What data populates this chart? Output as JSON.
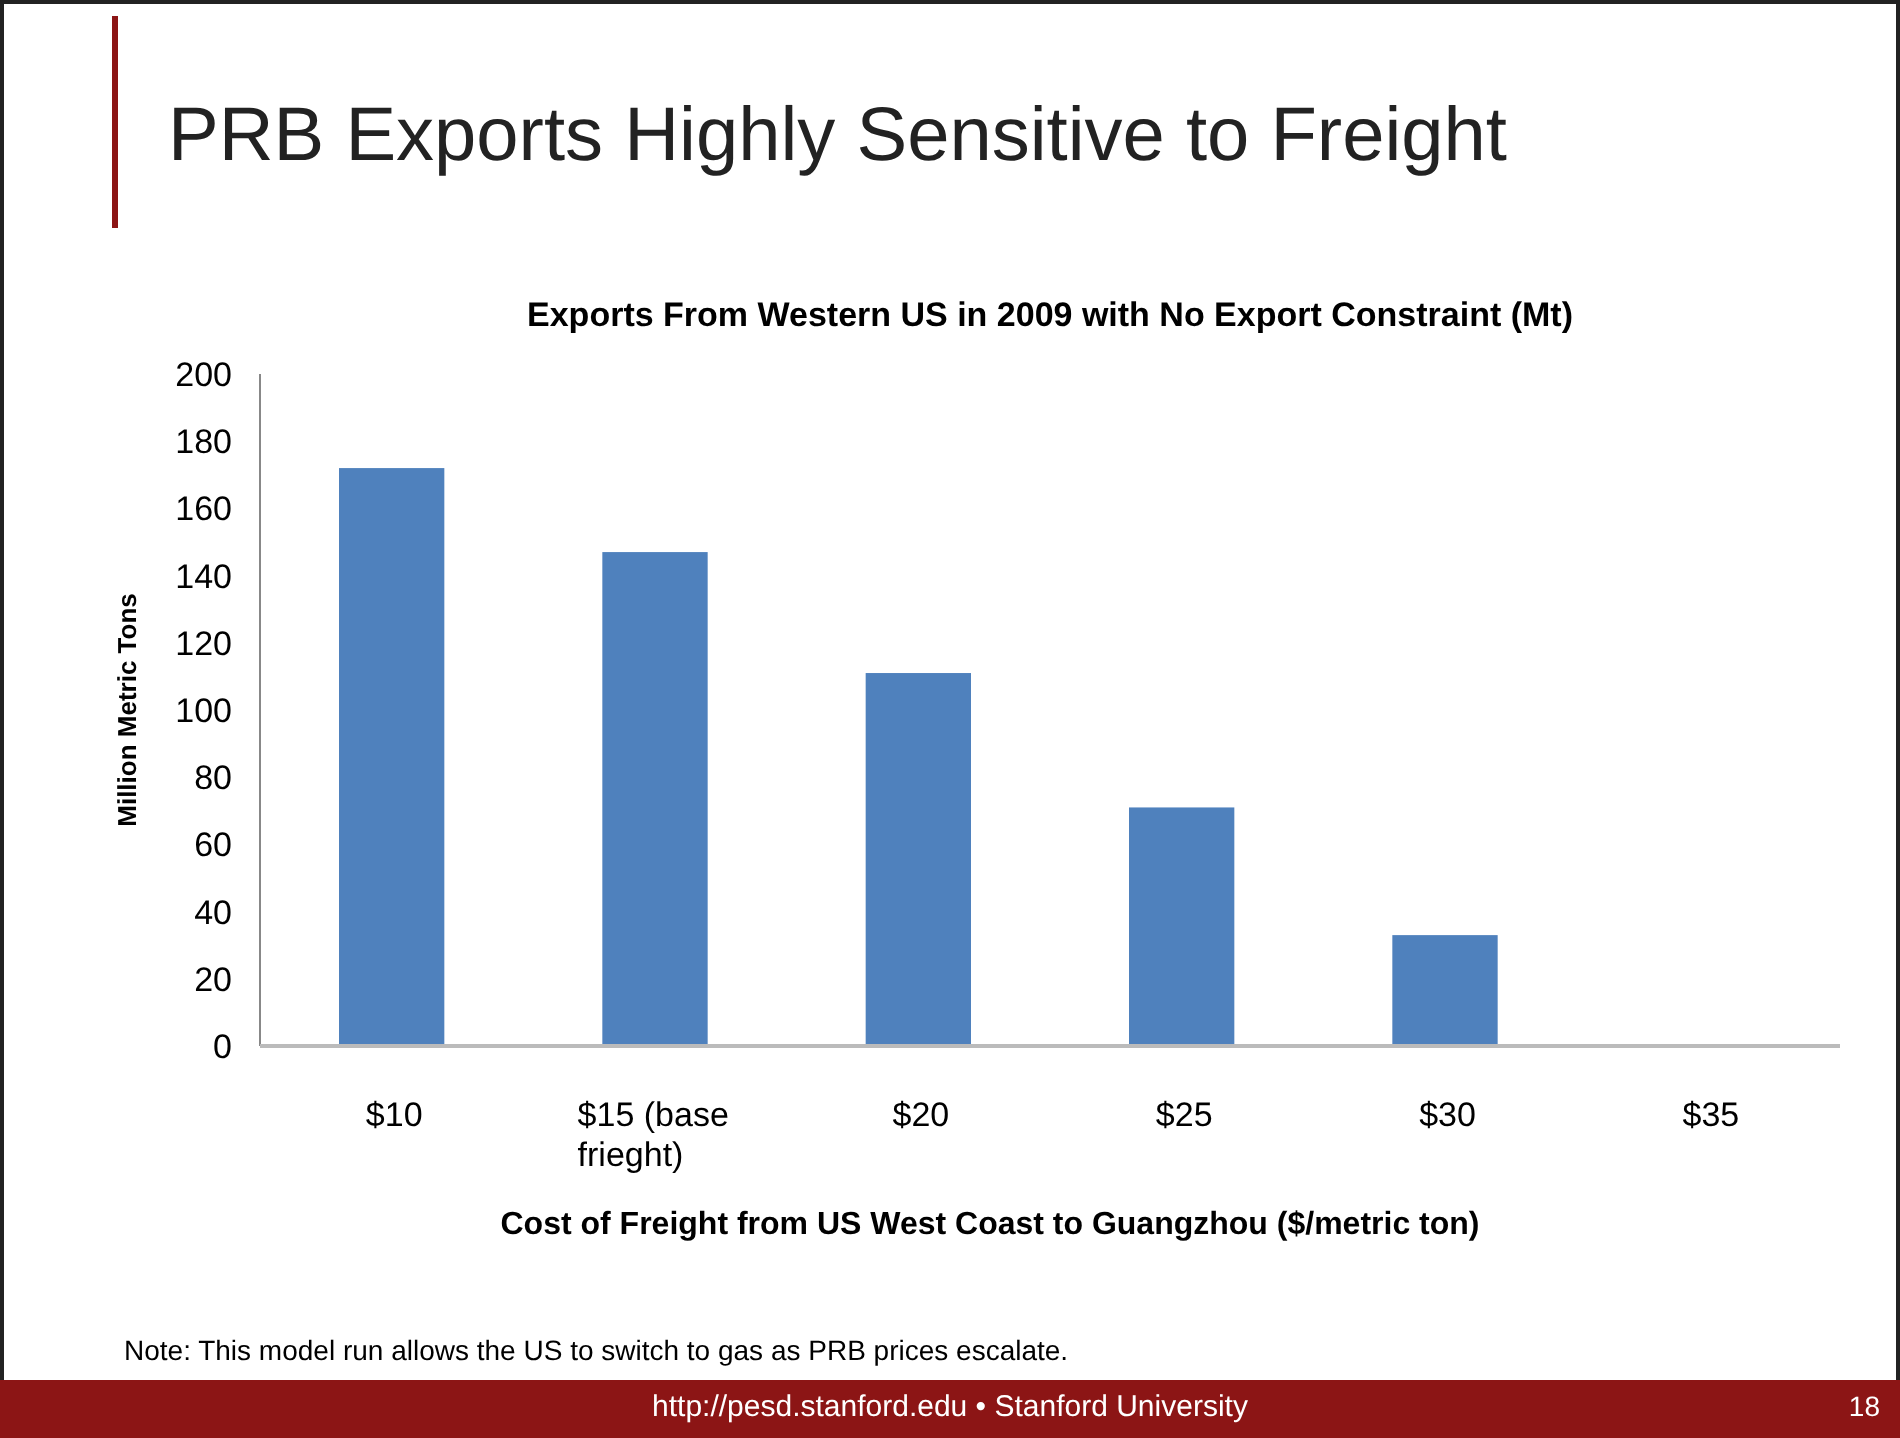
{
  "chart_data": {
    "type": "bar",
    "title": "PRB Exports Highly Sensitive to Freight",
    "subtitle": "Exports From Western US in 2009 with No Export Constraint (Mt)",
    "xlabel": "Cost of Freight from US West Coast to Guangzhou ($/metric ton)",
    "ylabel": "Million Metric Tons",
    "categories": [
      "$10",
      "$15 (base frieght)",
      "$20",
      "$25",
      "$30",
      "$35"
    ],
    "values": [
      172,
      147,
      111,
      71,
      33,
      0
    ],
    "color": "#4f81bd",
    "ylim": [
      0,
      200
    ],
    "yticks": [
      0,
      20,
      40,
      60,
      80,
      100,
      120,
      140,
      160,
      180,
      200
    ],
    "grid": false,
    "annotations": [
      "Note: This model run allows the US to switch to gas as PRB prices escalate.",
      "http://pesd.stanford.edu • Stanford University",
      "18"
    ]
  }
}
